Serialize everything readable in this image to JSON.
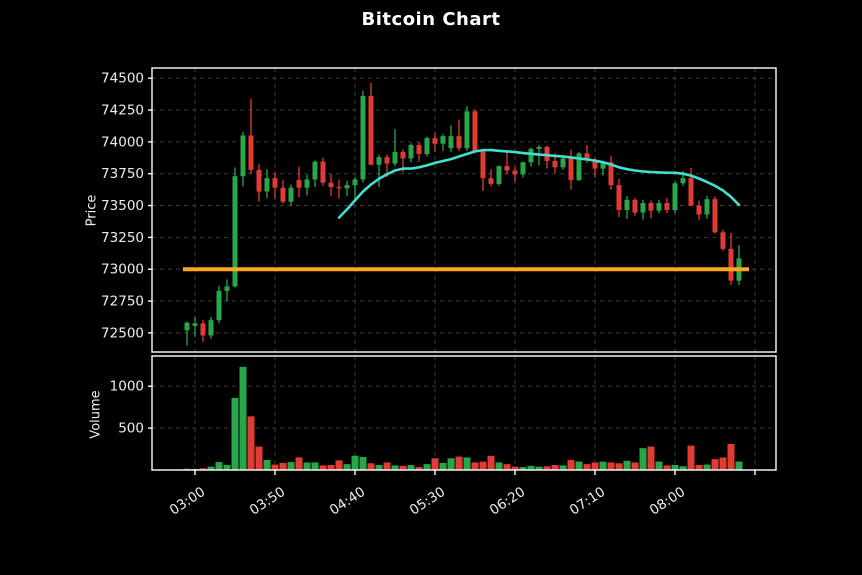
{
  "title": "Bitcoin Chart",
  "colors": {
    "background": "#000000",
    "up": "#2aa64a",
    "down": "#e23b33",
    "ma_line": "#40e0d0",
    "hline": "#ffa51e",
    "grid": "#3c3c3c",
    "axis": "#ffffff",
    "tick_text": "#ededed"
  },
  "chart_data": [
    {
      "type": "candlestick",
      "title": "Bitcoin Chart",
      "ylabel": "Price",
      "ylim": [
        72350,
        74580
      ],
      "yticks": [
        72500,
        72750,
        73000,
        73250,
        73500,
        73750,
        74000,
        74250,
        74500
      ],
      "grid": true,
      "legend_position": "none",
      "columns": [
        "time",
        "open",
        "high",
        "low",
        "close",
        "volume"
      ],
      "candles": [
        [
          "02:55",
          72520,
          72590,
          72400,
          72580,
          15
        ],
        [
          "03:00",
          72555,
          72625,
          72470,
          72575,
          12
        ],
        [
          "03:05",
          72575,
          72600,
          72430,
          72480,
          20
        ],
        [
          "03:10",
          72480,
          72625,
          72455,
          72600,
          40
        ],
        [
          "03:15",
          72600,
          72870,
          72575,
          72830,
          95
        ],
        [
          "03:20",
          72830,
          72920,
          72750,
          72865,
          60
        ],
        [
          "03:25",
          72865,
          73800,
          72855,
          73730,
          860
        ],
        [
          "03:30",
          73730,
          74080,
          73650,
          74050,
          1230
        ],
        [
          "03:35",
          74050,
          74340,
          73750,
          73780,
          640
        ],
        [
          "03:40",
          73780,
          73825,
          73530,
          73610,
          280
        ],
        [
          "03:45",
          73610,
          73785,
          73560,
          73715,
          120
        ],
        [
          "03:50",
          73715,
          73765,
          73555,
          73640,
          65
        ],
        [
          "03:55",
          73640,
          73700,
          73515,
          73530,
          85
        ],
        [
          "04:00",
          73530,
          73665,
          73500,
          73640,
          95
        ],
        [
          "04:05",
          73700,
          73805,
          73565,
          73640,
          150
        ],
        [
          "04:10",
          73640,
          73740,
          73580,
          73705,
          90
        ],
        [
          "04:15",
          73705,
          73855,
          73645,
          73845,
          90
        ],
        [
          "04:20",
          73845,
          73875,
          73655,
          73680,
          55
        ],
        [
          "04:25",
          73680,
          73745,
          73575,
          73645,
          60
        ],
        [
          "04:30",
          73645,
          73705,
          73555,
          73635,
          115
        ],
        [
          "04:35",
          73635,
          73695,
          73575,
          73660,
          70
        ],
        [
          "04:40",
          73660,
          73725,
          73555,
          73705,
          170
        ],
        [
          "04:45",
          73705,
          74400,
          73680,
          74360,
          155
        ],
        [
          "04:50",
          74360,
          74465,
          73815,
          73820,
          80
        ],
        [
          "04:55",
          73820,
          73900,
          73645,
          73880,
          60
        ],
        [
          "05:00",
          73880,
          73900,
          73725,
          73830,
          90
        ],
        [
          "05:05",
          73830,
          74100,
          73810,
          73920,
          55
        ],
        [
          "05:10",
          73920,
          73940,
          73760,
          73870,
          50
        ],
        [
          "05:15",
          73870,
          73990,
          73840,
          73975,
          60
        ],
        [
          "05:20",
          73975,
          73995,
          73845,
          73905,
          35
        ],
        [
          "05:25",
          73905,
          74040,
          73885,
          74030,
          70
        ],
        [
          "05:30",
          74030,
          74075,
          73920,
          73985,
          140
        ],
        [
          "05:35",
          73985,
          74060,
          73930,
          74045,
          85
        ],
        [
          "05:40",
          73950,
          74130,
          73920,
          74045,
          140
        ],
        [
          "05:45",
          74045,
          74175,
          73930,
          73950,
          160
        ],
        [
          "05:50",
          73950,
          74280,
          73930,
          74240,
          150
        ],
        [
          "05:55",
          74240,
          74255,
          73910,
          73925,
          90
        ],
        [
          "06:00",
          73925,
          73940,
          73615,
          73715,
          100
        ],
        [
          "06:05",
          73715,
          73785,
          73650,
          73670,
          170
        ],
        [
          "06:10",
          73670,
          73815,
          73655,
          73810,
          90
        ],
        [
          "06:15",
          73810,
          73925,
          73745,
          73775,
          70
        ],
        [
          "06:20",
          73775,
          73805,
          73685,
          73745,
          40
        ],
        [
          "06:25",
          73745,
          73845,
          73720,
          73840,
          35
        ],
        [
          "06:30",
          73840,
          73955,
          73805,
          73945,
          50
        ],
        [
          "06:35",
          73945,
          73975,
          73815,
          73960,
          40
        ],
        [
          "06:40",
          73960,
          73970,
          73790,
          73850,
          45
        ],
        [
          "06:45",
          73850,
          73910,
          73755,
          73800,
          60
        ],
        [
          "06:50",
          73800,
          73900,
          73780,
          73870,
          55
        ],
        [
          "06:55",
          73870,
          73940,
          73625,
          73700,
          120
        ],
        [
          "07:00",
          73700,
          73920,
          73690,
          73910,
          100
        ],
        [
          "07:05",
          73910,
          73975,
          73835,
          73855,
          70
        ],
        [
          "07:10",
          73855,
          73875,
          73720,
          73790,
          90
        ],
        [
          "07:15",
          73790,
          73845,
          73735,
          73840,
          100
        ],
        [
          "07:20",
          73840,
          73890,
          73625,
          73660,
          90
        ],
        [
          "07:25",
          73660,
          73710,
          73410,
          73465,
          80
        ],
        [
          "07:30",
          73465,
          73575,
          73395,
          73545,
          110
        ],
        [
          "07:35",
          73545,
          73560,
          73420,
          73445,
          90
        ],
        [
          "07:40",
          73445,
          73545,
          73390,
          73520,
          260
        ],
        [
          "07:45",
          73520,
          73540,
          73400,
          73460,
          280
        ],
        [
          "07:50",
          73460,
          73545,
          73440,
          73520,
          100
        ],
        [
          "07:55",
          73520,
          73560,
          73440,
          73465,
          55
        ],
        [
          "08:00",
          73465,
          73690,
          73440,
          73675,
          60
        ],
        [
          "08:05",
          73675,
          73770,
          73655,
          73715,
          45
        ],
        [
          "08:10",
          73715,
          73795,
          73495,
          73500,
          290
        ],
        [
          "08:15",
          73500,
          73540,
          73385,
          73430,
          60
        ],
        [
          "08:20",
          73430,
          73575,
          73395,
          73550,
          65
        ],
        [
          "08:25",
          73550,
          73570,
          73280,
          73290,
          130
        ],
        [
          "08:30",
          73290,
          73310,
          73145,
          73160,
          150
        ],
        [
          "08:35",
          73160,
          73285,
          72875,
          72910,
          310
        ],
        [
          "08:40",
          72910,
          73190,
          72875,
          73085,
          100
        ]
      ],
      "xticks": {
        "labels": [
          "03:00",
          "03:50",
          "04:40",
          "05:30",
          "06:20",
          "07:10",
          "08:00"
        ],
        "candle_indices": [
          1,
          11,
          21,
          31,
          41,
          51,
          61
        ],
        "extra_unlabeled_index": 71,
        "rotation_deg": 33
      },
      "overlays": [
        {
          "name": "moving-average",
          "type": "line",
          "start_index": 19,
          "values": [
            73405,
            73470,
            73540,
            73610,
            73665,
            73710,
            73745,
            73775,
            73790,
            73790,
            73800,
            73815,
            73835,
            73850,
            73865,
            73885,
            73905,
            73925,
            73935,
            73935,
            73930,
            73925,
            73920,
            73912,
            73906,
            73900,
            73895,
            73890,
            73885,
            73878,
            73870,
            73862,
            73852,
            73840,
            73822,
            73800,
            73785,
            73775,
            73768,
            73763,
            73760,
            73758,
            73757,
            73750,
            73735,
            73712,
            73685,
            73655,
            73618,
            73568,
            73505
          ]
        },
        {
          "name": "support-level",
          "type": "hline",
          "value": 73000
        }
      ]
    },
    {
      "type": "bar",
      "ylabel": "Volume",
      "ylim": [
        0,
        1360
      ],
      "yticks": [
        500,
        1000
      ],
      "grid": true,
      "note": "volume bars use the volume column of candles; color follows candle direction"
    }
  ]
}
